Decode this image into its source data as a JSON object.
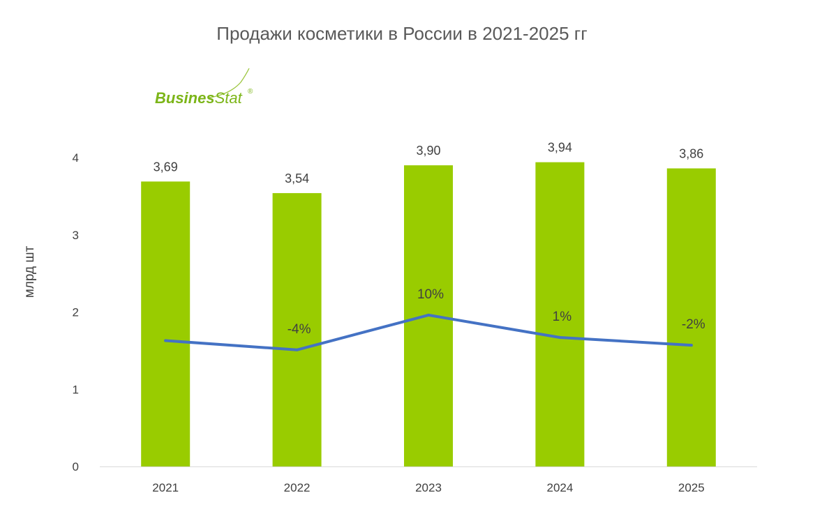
{
  "chart_data": {
    "type": "bar",
    "title": "Продажи косметики в России в 2021-2025 гг",
    "ylabel": "млрд  шт",
    "xlabel": "",
    "ylim": [
      0,
      4
    ],
    "yticks": [
      "0",
      "1",
      "2",
      "3",
      "4"
    ],
    "categories": [
      "2021",
      "2022",
      "2023",
      "2024",
      "2025"
    ],
    "values": [
      3.69,
      3.54,
      3.9,
      3.94,
      3.86
    ],
    "value_labels": [
      "3,69",
      "3,54",
      "3,90",
      "3,94",
      "3,86"
    ],
    "growth_line": {
      "type": "line",
      "values": [
        1.63,
        1.51,
        1.96,
        1.67,
        1.57
      ],
      "labels": [
        "",
        "-4%",
        "10%",
        "1%",
        "-2%"
      ]
    },
    "grid": false,
    "legend": "none"
  },
  "logo": {
    "bold_part": "Busines",
    "regular_part": "Stat",
    "mark": "®"
  },
  "colors": {
    "bar": "#99cc00",
    "line": "#4472c4",
    "axis": "#d9d9d9",
    "logo": "#7cb518"
  }
}
